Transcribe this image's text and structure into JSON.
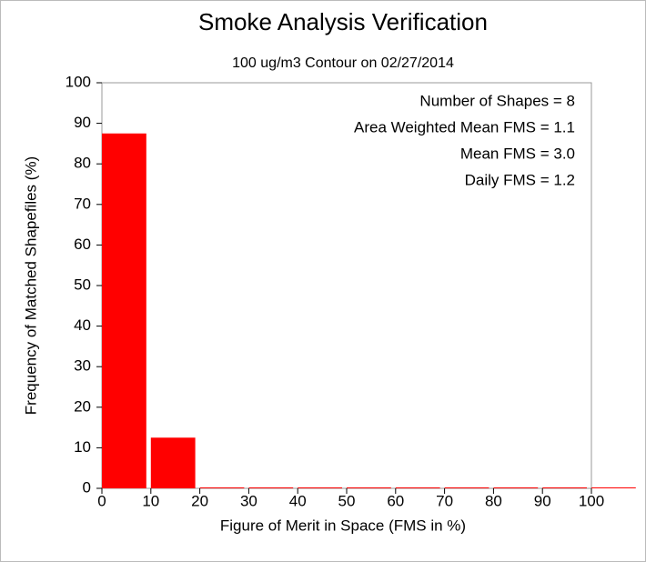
{
  "chart_data": {
    "type": "histogram",
    "title": "Smoke Analysis Verification",
    "subtitle": "100 ug/m3 Contour on 02/27/2014",
    "xlabel": "Figure of Merit in Space (FMS in %)",
    "ylabel": "Frequency of Matched Shapefiles (%)",
    "bins": [
      0,
      10,
      20,
      30,
      40,
      50,
      60,
      70,
      80,
      90,
      100,
      110
    ],
    "values": [
      87.5,
      12.5,
      0,
      0,
      0,
      0,
      0,
      0,
      0,
      0,
      0
    ],
    "color": "#ff0000",
    "xlim": [
      0,
      100
    ],
    "ylim": [
      0,
      100
    ],
    "xticks": [
      0,
      10,
      20,
      30,
      40,
      50,
      60,
      70,
      80,
      90,
      100
    ],
    "yticks": [
      0,
      10,
      20,
      30,
      40,
      50,
      60,
      70,
      80,
      90,
      100
    ],
    "annotations": [
      "Number of Shapes = 8",
      "Area Weighted Mean FMS = 1.1",
      "Mean FMS = 3.0",
      "Daily FMS = 1.2"
    ]
  }
}
